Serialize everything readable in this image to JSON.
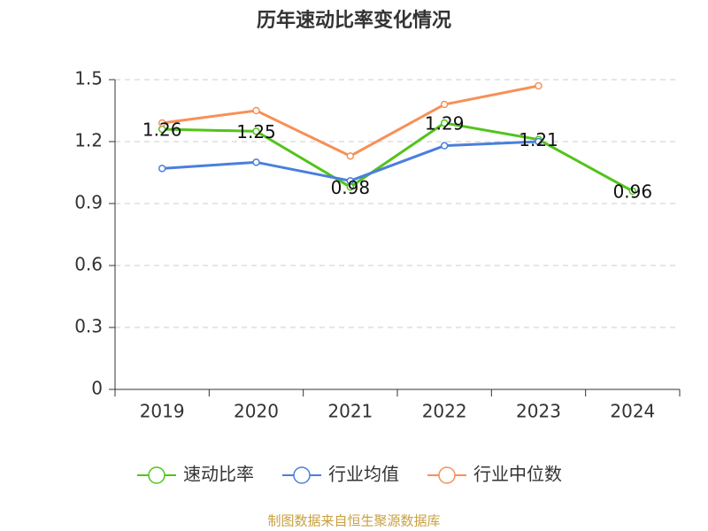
{
  "chart_data": {
    "type": "line",
    "title": "历年速动比率变化情况",
    "categories": [
      "2019",
      "2020",
      "2021",
      "2022",
      "2023",
      "2024"
    ],
    "series": [
      {
        "name": "速动比率",
        "color": "#52c41a",
        "values": [
          1.26,
          1.25,
          0.98,
          1.29,
          1.21,
          0.96
        ],
        "show_labels": true
      },
      {
        "name": "行业均值",
        "color": "#4a7fdc",
        "values": [
          1.07,
          1.1,
          1.01,
          1.18,
          1.2,
          null
        ],
        "show_labels": false
      },
      {
        "name": "行业中位数",
        "color": "#f79057",
        "values": [
          1.29,
          1.35,
          1.13,
          1.38,
          1.47,
          null
        ],
        "show_labels": false
      }
    ],
    "ylim": [
      0,
      1.5
    ],
    "yticks": [
      0,
      0.3,
      0.6,
      0.9,
      1.2,
      1.5
    ],
    "grid": true,
    "legend": "bottom",
    "source": "制图数据来自恒生聚源数据库"
  }
}
